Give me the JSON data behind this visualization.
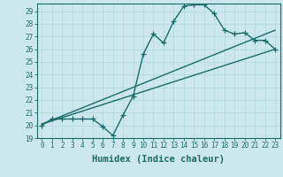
{
  "xlabel": "Humidex (Indice chaleur)",
  "ylabel": "",
  "bg_color": "#cce8ee",
  "line_color": "#1a6b6b",
  "xlim": [
    -0.5,
    23.5
  ],
  "ylim": [
    19,
    29.6
  ],
  "yticks": [
    19,
    20,
    21,
    22,
    23,
    24,
    25,
    26,
    27,
    28,
    29
  ],
  "xticks": [
    0,
    1,
    2,
    3,
    4,
    5,
    6,
    7,
    8,
    9,
    10,
    11,
    12,
    13,
    14,
    15,
    16,
    17,
    18,
    19,
    20,
    21,
    22,
    23
  ],
  "line1_x": [
    0,
    1,
    2,
    3,
    4,
    5,
    6,
    7,
    8,
    9,
    10,
    11,
    12,
    13,
    14,
    15,
    16,
    17,
    18,
    19,
    20,
    21,
    22,
    23
  ],
  "line1_y": [
    20.0,
    20.5,
    20.5,
    20.5,
    20.5,
    20.5,
    19.9,
    19.2,
    20.8,
    22.3,
    25.6,
    27.2,
    26.5,
    28.2,
    29.4,
    29.5,
    29.5,
    28.8,
    27.5,
    27.2,
    27.3,
    26.7,
    26.7,
    26.0
  ],
  "line2_x": [
    0,
    23
  ],
  "line2_y": [
    20.1,
    27.5
  ],
  "line3_x": [
    0,
    23
  ],
  "line3_y": [
    20.1,
    26.0
  ],
  "marker": "+",
  "markersize": 4,
  "linewidth": 1.0,
  "tick_fontsize": 5.5,
  "xlabel_fontsize": 7.5
}
